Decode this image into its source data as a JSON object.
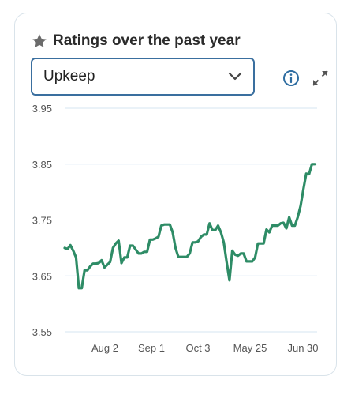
{
  "card": {
    "title": "Ratings over the past year",
    "title_icon": "star-icon",
    "dropdown": {
      "selected": "Upkeep",
      "icon": "chevron-down-icon"
    },
    "actions": [
      {
        "name": "info-icon"
      },
      {
        "name": "expand-icon"
      }
    ]
  },
  "colors": {
    "line": "#2e8c66",
    "grid": "#d6e6f2",
    "axis_text": "#555555",
    "select_border": "#3a6f9f",
    "icon_blue": "#2f6da1"
  },
  "chart_data": {
    "type": "line",
    "title": "",
    "xlabel": "",
    "ylabel": "",
    "ylim": [
      3.55,
      3.95
    ],
    "y_ticks": [
      "3.95",
      "3.85",
      "3.75",
      "3.65",
      "3.55"
    ],
    "x_ticks": [
      "Aug 2",
      "Sep 1",
      "Oct 3",
      "May 25",
      "Jun 30"
    ],
    "grid": "horizontal",
    "series": [
      {
        "values": [
          3.7,
          3.698,
          3.705,
          3.695,
          3.683,
          3.628,
          3.628,
          3.66,
          3.66,
          3.667,
          3.672,
          3.672,
          3.673,
          3.678,
          3.665,
          3.67,
          3.675,
          3.7,
          3.708,
          3.713,
          3.673,
          3.683,
          3.683,
          3.704,
          3.704,
          3.697,
          3.69,
          3.69,
          3.693,
          3.693,
          3.715,
          3.715,
          3.717,
          3.72,
          3.74,
          3.742,
          3.742,
          3.742,
          3.728,
          3.7,
          3.684,
          3.684,
          3.684,
          3.684,
          3.69,
          3.71,
          3.71,
          3.712,
          3.72,
          3.724,
          3.724,
          3.744,
          3.732,
          3.732,
          3.74,
          3.728,
          3.71,
          3.675,
          3.642,
          3.695,
          3.688,
          3.686,
          3.69,
          3.69,
          3.676,
          3.676,
          3.676,
          3.683,
          3.708,
          3.708,
          3.708,
          3.733,
          3.728,
          3.74,
          3.74,
          3.74,
          3.744,
          3.745,
          3.735,
          3.755,
          3.74,
          3.74,
          3.755,
          3.775,
          3.805,
          3.833,
          3.832,
          3.85,
          3.85
        ]
      }
    ]
  }
}
